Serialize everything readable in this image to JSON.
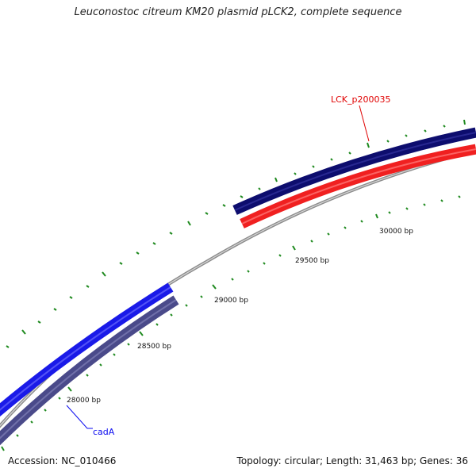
{
  "title": "Leuconostoc citreum KM20 plasmid pLCK2, complete sequence",
  "footer": {
    "accession": "Accession: NC_010466",
    "summary": "Topology: circular; Length: 31,463 bp; Genes: 36"
  },
  "ticks": [
    {
      "label": "28000 bp",
      "pos": 28000
    },
    {
      "label": "28500 bp",
      "pos": 28500
    },
    {
      "label": "29000 bp",
      "pos": 29000
    },
    {
      "label": "29500 bp",
      "pos": 29500
    },
    {
      "label": "30000 bp",
      "pos": 30000
    }
  ],
  "genes": [
    {
      "label": "LCK_p200035",
      "color": "#e00000",
      "label_color": "#e00000"
    },
    {
      "label": "cadA",
      "color": "#0a0af0",
      "label_color": "#0a0af0"
    }
  ],
  "colors": {
    "backbone": "#8c8c8c",
    "track_dark_navy": "#0d0d6e",
    "track_red": "#f02020",
    "track_blue": "#1a1ae8",
    "track_slate": "#4a4a8a",
    "tick_green": "#1f8a1f"
  }
}
